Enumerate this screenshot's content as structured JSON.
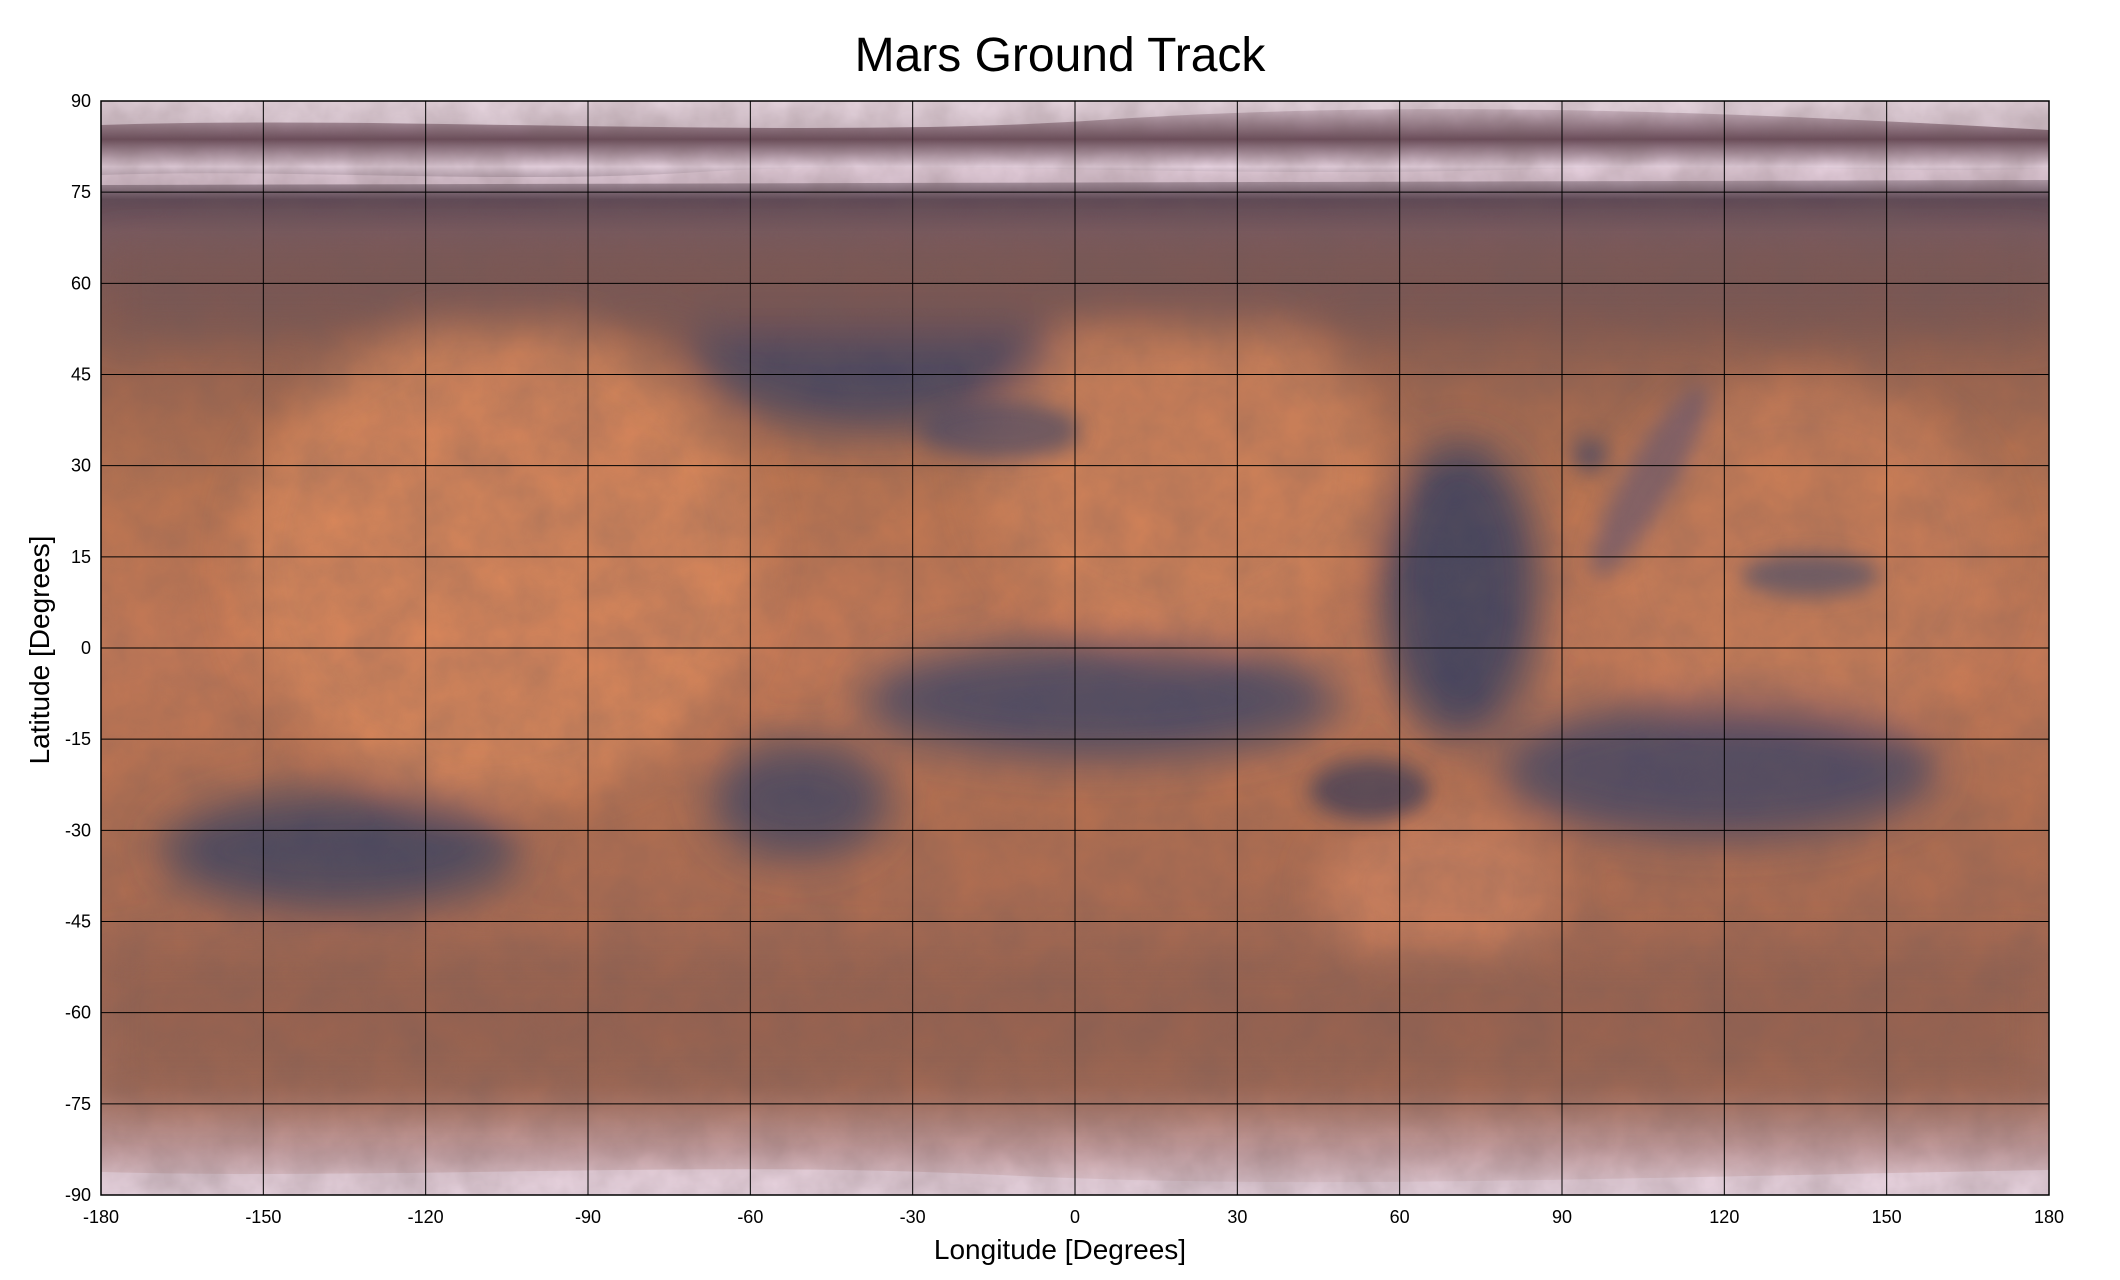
{
  "chart_data": {
    "type": "map",
    "title": "Mars Ground Track",
    "xlabel": "Longitude [Degrees]",
    "ylabel": "Latitude [Degrees]",
    "xlim": [
      -180,
      180
    ],
    "ylim": [
      -90,
      90
    ],
    "xticks": [
      -180,
      -150,
      -120,
      -90,
      -60,
      -30,
      0,
      30,
      60,
      90,
      120,
      150,
      180
    ],
    "yticks": [
      90,
      75,
      60,
      45,
      30,
      15,
      0,
      -15,
      -30,
      -45,
      -60,
      -75,
      -90
    ],
    "grid": true,
    "background": "Mars surface map (equirectangular)",
    "colors": {
      "terrain_bright": "#d7835a",
      "terrain_mid": "#b06a4c",
      "terrain_dark": "#3a4060",
      "polar_ice": "#efdbe8"
    }
  }
}
